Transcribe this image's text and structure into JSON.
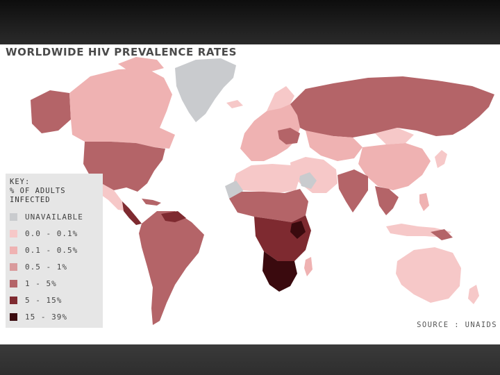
{
  "title": "WORLDWIDE HIV PREVALENCE RATES",
  "key": {
    "title_lines": [
      "KEY:",
      "% OF ADULTS",
      "INFECTED"
    ],
    "items": [
      {
        "label": "UNAVAILABLE",
        "color": "#c9cbce"
      },
      {
        "label": "0.0 - 0.1%",
        "color": "#f6c8c8"
      },
      {
        "label": "0.1 - 0.5%",
        "color": "#efb2b2"
      },
      {
        "label": "0.5 - 1%",
        "color": "#d99a9c"
      },
      {
        "label": "1 - 5%",
        "color": "#b46468"
      },
      {
        "label": "5 - 15%",
        "color": "#7e2a30"
      },
      {
        "label": "15 - 39%",
        "color": "#3a0a0e"
      }
    ]
  },
  "source": "SOURCE : UNAIDS"
}
